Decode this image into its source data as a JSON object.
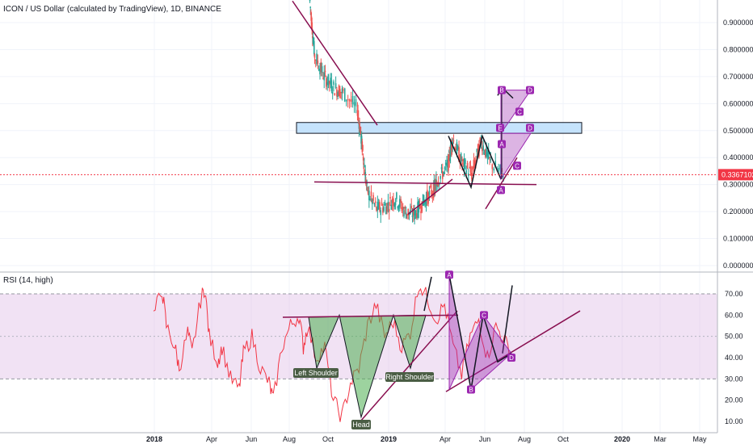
{
  "chart_data": [
    {
      "type": "candlestick",
      "title": "ICON / US Dollar (calculated by TradingView), 1D, BINANCE",
      "yticks": [
        "0.9000000",
        "0.8000000",
        "0.7000000",
        "0.6000000",
        "0.5000000",
        "0.4000000",
        "0.3000000",
        "0.2000000",
        "0.1000000",
        "0.0000000"
      ],
      "ylim": [
        0,
        1.0
      ],
      "last_price": "0.3367102",
      "last_price_value": 0.3367,
      "price_path": [
        [
          0.04,
          0.98
        ],
        [
          0.05,
          0.78
        ],
        [
          0.07,
          0.7
        ],
        [
          0.09,
          0.66
        ],
        [
          0.11,
          0.64
        ],
        [
          0.14,
          0.58
        ],
        [
          0.15,
          0.44
        ],
        [
          0.16,
          0.28
        ],
        [
          0.18,
          0.21
        ],
        [
          0.2,
          0.22
        ],
        [
          0.22,
          0.25
        ],
        [
          0.24,
          0.2
        ],
        [
          0.26,
          0.19
        ],
        [
          0.28,
          0.24
        ],
        [
          0.3,
          0.28
        ],
        [
          0.31,
          0.32
        ],
        [
          0.33,
          0.37
        ],
        [
          0.34,
          0.47
        ],
        [
          0.36,
          0.38
        ],
        [
          0.38,
          0.34
        ],
        [
          0.4,
          0.46
        ],
        [
          0.42,
          0.38
        ],
        [
          0.45,
          0.33
        ]
      ],
      "harmonic_points": [
        "A",
        "B",
        "C",
        "D",
        "E",
        "D",
        "C",
        "A"
      ],
      "resistance_zone": [
        0.49,
        0.53
      ]
    },
    {
      "type": "line",
      "title": "RSI (14, high)",
      "yticks": [
        "70.00",
        "60.00",
        "50.00",
        "40.00",
        "30.00",
        "20.00",
        "10.00"
      ],
      "ylim": [
        6,
        80
      ],
      "band": [
        30,
        70
      ],
      "rsi_path": [
        [
          0.0,
          60
        ],
        [
          0.02,
          72
        ],
        [
          0.03,
          55
        ],
        [
          0.05,
          45
        ],
        [
          0.06,
          35
        ],
        [
          0.08,
          52
        ],
        [
          0.09,
          42
        ],
        [
          0.11,
          67
        ],
        [
          0.12,
          73
        ],
        [
          0.13,
          50
        ],
        [
          0.15,
          38
        ],
        [
          0.16,
          45
        ],
        [
          0.18,
          30
        ],
        [
          0.2,
          25
        ],
        [
          0.21,
          42
        ],
        [
          0.23,
          50
        ],
        [
          0.25,
          35
        ],
        [
          0.27,
          28
        ],
        [
          0.28,
          20
        ],
        [
          0.3,
          45
        ],
        [
          0.32,
          55
        ],
        [
          0.34,
          60
        ],
        [
          0.35,
          45
        ],
        [
          0.36,
          55
        ],
        [
          0.38,
          40
        ],
        [
          0.4,
          45
        ],
        [
          0.42,
          20
        ],
        [
          0.44,
          12
        ],
        [
          0.46,
          28
        ],
        [
          0.48,
          35
        ],
        [
          0.5,
          55
        ],
        [
          0.52,
          65
        ],
        [
          0.54,
          50
        ],
        [
          0.56,
          57
        ],
        [
          0.58,
          45
        ],
        [
          0.6,
          52
        ],
        [
          0.62,
          75
        ],
        [
          0.64,
          68
        ],
        [
          0.66,
          58
        ],
        [
          0.68,
          65
        ],
        [
          0.7,
          45
        ],
        [
          0.72,
          32
        ],
        [
          0.74,
          50
        ],
        [
          0.76,
          58
        ],
        [
          0.78,
          40
        ],
        [
          0.8,
          55
        ],
        [
          0.82,
          48
        ],
        [
          0.84,
          40
        ]
      ],
      "pattern_labels": {
        "left_shoulder": "Left Shoulder",
        "head": "Head",
        "right_shoulder": "Right Shoulder"
      },
      "harmonic_points": [
        "A",
        "B",
        "C",
        "D"
      ]
    }
  ],
  "xaxis": {
    "ticks": [
      "2018",
      "Apr",
      "Jun",
      "Aug",
      "Oct",
      "2019",
      "Apr",
      "Jun",
      "Aug",
      "Oct",
      "2020",
      "Mar",
      "May"
    ],
    "bold": [
      "2018",
      "2019",
      "2020"
    ]
  },
  "colors": {
    "up": "#26a69a",
    "down": "#ef5350",
    "rsi": "#f23645",
    "band": "#e1bee7",
    "harmonic": "#9c27b0",
    "pattern_fill": "#4caf50",
    "zone": "#bbdefb",
    "price_tag": "#f23645"
  }
}
